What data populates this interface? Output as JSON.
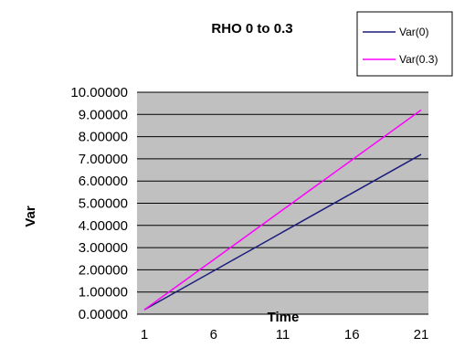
{
  "chart_data": {
    "type": "line",
    "title": "RHO 0 to 0.3",
    "xlabel": "Time",
    "ylabel": "Var",
    "x": [
      1,
      2,
      3,
      4,
      5,
      6,
      7,
      8,
      9,
      10,
      11,
      12,
      13,
      14,
      15,
      16,
      17,
      18,
      19,
      20,
      21
    ],
    "x_tick_labels": [
      "1",
      "6",
      "11",
      "16",
      "21"
    ],
    "y_tick_labels": [
      "0.00000",
      "1.00000",
      "2.00000",
      "3.00000",
      "4.00000",
      "5.00000",
      "6.00000",
      "7.00000",
      "8.00000",
      "9.00000",
      "10.00000"
    ],
    "ylim": [
      0,
      10
    ],
    "grid": "horizontal",
    "legend_position": "top-right",
    "series": [
      {
        "name": "Var(0)",
        "color": "#1c1c7c",
        "values": [
          0.2,
          0.55,
          0.9,
          1.25,
          1.6,
          1.95,
          2.3,
          2.65,
          3.0,
          3.35,
          3.7,
          4.05,
          4.4,
          4.75,
          5.1,
          5.45,
          5.8,
          6.15,
          6.5,
          6.85,
          7.2
        ]
      },
      {
        "name": "Var(0.3)",
        "color": "#ff00ff",
        "values": [
          0.2,
          0.65,
          1.1,
          1.55,
          2.0,
          2.45,
          2.9,
          3.35,
          3.8,
          4.25,
          4.7,
          5.15,
          5.6,
          6.05,
          6.5,
          6.95,
          7.4,
          7.85,
          8.3,
          8.75,
          9.2
        ]
      }
    ]
  }
}
